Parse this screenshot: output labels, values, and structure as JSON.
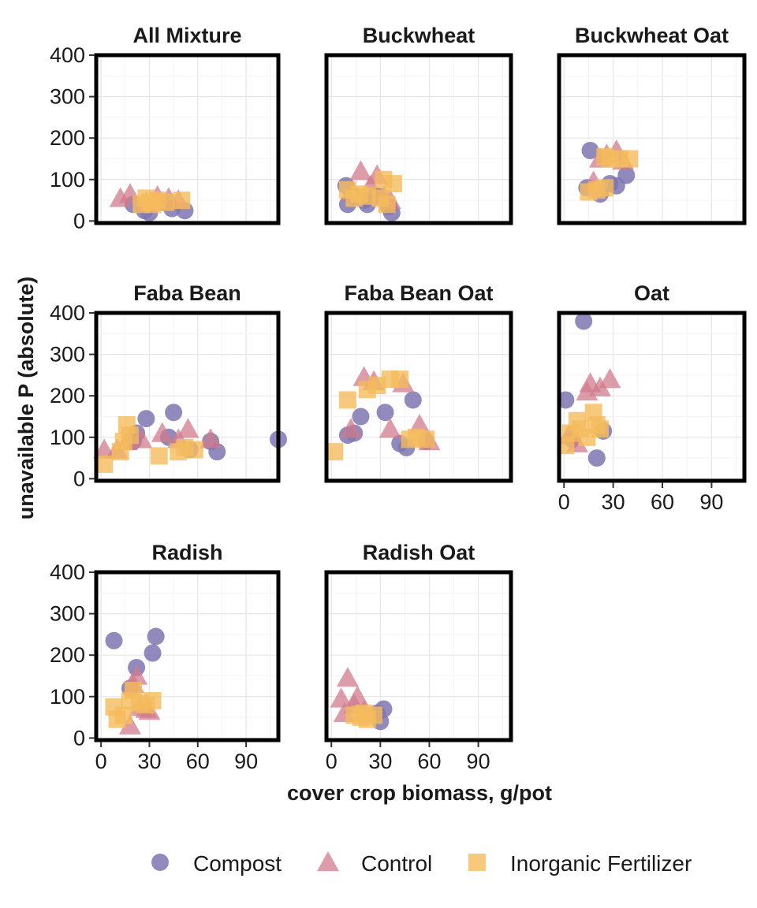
{
  "chart_data": {
    "type": "scatter",
    "facet_type": "small-multiples",
    "xlabel": "cover crop biomass, g/pot",
    "ylabel": "unavailable P (absolute)",
    "xlim": [
      -3,
      110
    ],
    "ylim": [
      -5,
      400
    ],
    "x_ticks": [
      0,
      30,
      60,
      90
    ],
    "y_ticks": [
      0,
      100,
      200,
      300,
      400
    ],
    "grid": true,
    "legend_position": "bottom",
    "series_styles": [
      {
        "name": "Compost",
        "shape": "circle",
        "color": "#7e75b0"
      },
      {
        "name": "Control",
        "shape": "triangle",
        "color": "#d07b8c"
      },
      {
        "name": "Inorganic Fertilizer",
        "shape": "square",
        "color": "#f5bb5d"
      }
    ],
    "panels": [
      {
        "title": "All Mixture",
        "series": [
          {
            "name": "Compost",
            "points": [
              [
                20,
                40
              ],
              [
                27,
                25
              ],
              [
                30,
                20
              ],
              [
                38,
                45
              ],
              [
                44,
                30
              ],
              [
                52,
                25
              ]
            ]
          },
          {
            "name": "Control",
            "points": [
              [
                12,
                55
              ],
              [
                18,
                65
              ],
              [
                28,
                45
              ],
              [
                35,
                60
              ],
              [
                42,
                55
              ],
              [
                48,
                50
              ]
            ]
          },
          {
            "name": "Inorganic Fertilizer",
            "points": [
              [
                25,
                40
              ],
              [
                28,
                55
              ],
              [
                30,
                45
              ],
              [
                32,
                40
              ],
              [
                35,
                50
              ],
              [
                40,
                45
              ],
              [
                50,
                50
              ]
            ]
          }
        ]
      },
      {
        "title": "Buckwheat",
        "series": [
          {
            "name": "Compost",
            "points": [
              [
                9,
                85
              ],
              [
                10,
                40
              ],
              [
                14,
                60
              ],
              [
                20,
                50
              ],
              [
                22,
                40
              ],
              [
                28,
                60
              ],
              [
                35,
                35
              ],
              [
                37,
                20
              ]
            ]
          },
          {
            "name": "Control",
            "points": [
              [
                12,
                70
              ],
              [
                18,
                120
              ],
              [
                24,
                85
              ],
              [
                28,
                110
              ],
              [
                32,
                60
              ],
              [
                36,
                50
              ]
            ]
          },
          {
            "name": "Inorganic Fertilizer",
            "points": [
              [
                10,
                75
              ],
              [
                14,
                55
              ],
              [
                17,
                65
              ],
              [
                22,
                60
              ],
              [
                30,
                55
              ],
              [
                32,
                100
              ],
              [
                34,
                40
              ],
              [
                38,
                90
              ]
            ]
          }
        ]
      },
      {
        "title": "Buckwheat Oat",
        "series": [
          {
            "name": "Compost",
            "points": [
              [
                14,
                80
              ],
              [
                16,
                170
              ],
              [
                22,
                65
              ],
              [
                28,
                90
              ],
              [
                32,
                85
              ],
              [
                38,
                110
              ]
            ]
          },
          {
            "name": "Control",
            "points": [
              [
                18,
                95
              ],
              [
                22,
                150
              ],
              [
                26,
                160
              ],
              [
                32,
                170
              ],
              [
                36,
                145
              ]
            ]
          },
          {
            "name": "Inorganic Fertilizer",
            "points": [
              [
                15,
                70
              ],
              [
                20,
                75
              ],
              [
                25,
                80
              ],
              [
                25,
                155
              ],
              [
                28,
                150
              ],
              [
                34,
                150
              ],
              [
                40,
                150
              ]
            ]
          }
        ]
      },
      {
        "title": "Faba Bean",
        "series": [
          {
            "name": "Compost",
            "points": [
              [
                20,
                90
              ],
              [
                22,
                110
              ],
              [
                28,
                145
              ],
              [
                42,
                100
              ],
              [
                45,
                160
              ],
              [
                55,
                70
              ],
              [
                68,
                90
              ],
              [
                72,
                65
              ],
              [
                110,
                95
              ]
            ]
          },
          {
            "name": "Control",
            "points": [
              [
                2,
                70
              ],
              [
                10,
                70
              ],
              [
                16,
                90
              ],
              [
                25,
                95
              ],
              [
                38,
                110
              ],
              [
                48,
                95
              ],
              [
                54,
                120
              ],
              [
                68,
                95
              ]
            ]
          },
          {
            "name": "Inorganic Fertilizer",
            "points": [
              [
                2,
                35
              ],
              [
                12,
                65
              ],
              [
                14,
                90
              ],
              [
                16,
                130
              ],
              [
                18,
                105
              ],
              [
                36,
                55
              ],
              [
                48,
                65
              ],
              [
                52,
                75
              ],
              [
                58,
                70
              ]
            ]
          }
        ]
      },
      {
        "title": "Faba Bean Oat",
        "series": [
          {
            "name": "Compost",
            "points": [
              [
                10,
                105
              ],
              [
                14,
                110
              ],
              [
                18,
                150
              ],
              [
                33,
                160
              ],
              [
                42,
                85
              ],
              [
                46,
                75
              ],
              [
                50,
                190
              ],
              [
                58,
                90
              ]
            ]
          },
          {
            "name": "Control",
            "points": [
              [
                12,
                120
              ],
              [
                20,
                245
              ],
              [
                26,
                235
              ],
              [
                36,
                120
              ],
              [
                44,
                230
              ],
              [
                54,
                130
              ],
              [
                60,
                90
              ]
            ]
          },
          {
            "name": "Inorganic Fertilizer",
            "points": [
              [
                2,
                65
              ],
              [
                10,
                190
              ],
              [
                22,
                215
              ],
              [
                28,
                225
              ],
              [
                36,
                240
              ],
              [
                42,
                240
              ],
              [
                48,
                95
              ],
              [
                52,
                100
              ],
              [
                58,
                95
              ]
            ]
          }
        ]
      },
      {
        "title": "Oat",
        "series": [
          {
            "name": "Compost",
            "points": [
              [
                1,
                190
              ],
              [
                5,
                95
              ],
              [
                12,
                380
              ],
              [
                20,
                50
              ],
              [
                24,
                115
              ]
            ]
          },
          {
            "name": "Control",
            "points": [
              [
                3,
                105
              ],
              [
                8,
                85
              ],
              [
                14,
                210
              ],
              [
                16,
                230
              ],
              [
                22,
                220
              ],
              [
                28,
                240
              ]
            ]
          },
          {
            "name": "Inorganic Fertilizer",
            "points": [
              [
                1,
                80
              ],
              [
                4,
                110
              ],
              [
                8,
                140
              ],
              [
                10,
                120
              ],
              [
                14,
                100
              ],
              [
                18,
                160
              ],
              [
                20,
                130
              ],
              [
                22,
                120
              ]
            ]
          }
        ]
      },
      {
        "title": "Radish",
        "series": [
          {
            "name": "Compost",
            "points": [
              [
                8,
                235
              ],
              [
                18,
                120
              ],
              [
                22,
                170
              ],
              [
                32,
                205
              ],
              [
                34,
                245
              ]
            ]
          },
          {
            "name": "Control",
            "points": [
              [
                18,
                30
              ],
              [
                20,
                130
              ],
              [
                22,
                150
              ],
              [
                24,
                75
              ],
              [
                28,
                70
              ],
              [
                30,
                65
              ]
            ]
          },
          {
            "name": "Inorganic Fertilizer",
            "points": [
              [
                8,
                75
              ],
              [
                10,
                45
              ],
              [
                14,
                55
              ],
              [
                18,
                90
              ],
              [
                20,
                115
              ],
              [
                24,
                85
              ],
              [
                28,
                80
              ],
              [
                32,
                90
              ]
            ]
          }
        ]
      },
      {
        "title": "Radish Oat",
        "series": [
          {
            "name": "Compost",
            "points": [
              [
                28,
                60
              ],
              [
                30,
                40
              ],
              [
                32,
                70
              ]
            ]
          },
          {
            "name": "Control",
            "points": [
              [
                6,
                95
              ],
              [
                8,
                60
              ],
              [
                10,
                145
              ],
              [
                14,
                80
              ],
              [
                16,
                100
              ],
              [
                20,
                65
              ]
            ]
          },
          {
            "name": "Inorganic Fertilizer",
            "points": [
              [
                14,
                55
              ],
              [
                18,
                50
              ],
              [
                20,
                60
              ],
              [
                22,
                45
              ],
              [
                26,
                55
              ]
            ]
          }
        ]
      }
    ]
  }
}
